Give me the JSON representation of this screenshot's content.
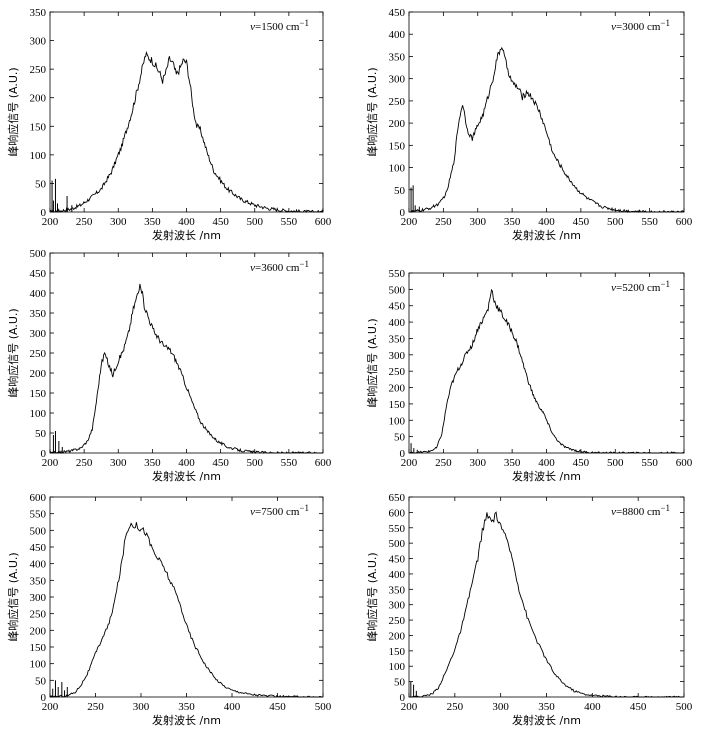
{
  "chart_data": [
    {
      "type": "line",
      "annotation_var": "v",
      "annotation_rest": "=1500 cm",
      "annotation_sup": "−1",
      "xlabel": "发射波长 /nm",
      "ylabel": "峰响应信号 (A.U.)",
      "xlim": [
        200,
        600
      ],
      "ylim": [
        0,
        350
      ],
      "xticks": [
        200,
        250,
        300,
        350,
        400,
        450,
        500,
        550,
        600
      ],
      "yticks": [
        0,
        50,
        100,
        150,
        200,
        250,
        300,
        350
      ],
      "spikes": [
        [
          203,
          55
        ],
        [
          205,
          20
        ],
        [
          208,
          58
        ],
        [
          211,
          15
        ],
        [
          225,
          28
        ],
        [
          232,
          12
        ]
      ],
      "x": [
        200,
        215,
        230,
        245,
        260,
        275,
        290,
        305,
        320,
        330,
        340,
        345,
        350,
        355,
        360,
        365,
        370,
        375,
        380,
        385,
        390,
        395,
        400,
        405,
        410,
        415,
        420,
        430,
        440,
        450,
        460,
        480,
        500,
        520,
        540,
        560,
        580,
        600
      ],
      "y": [
        0,
        2,
        5,
        12,
        25,
        40,
        70,
        115,
        175,
        225,
        275,
        270,
        265,
        255,
        245,
        230,
        245,
        268,
        260,
        240,
        250,
        265,
        262,
        225,
        180,
        150,
        145,
        105,
        72,
        55,
        40,
        22,
        12,
        6,
        3,
        1,
        0,
        0
      ]
    },
    {
      "type": "line",
      "annotation_var": "v",
      "annotation_rest": "=3000 cm",
      "annotation_sup": "−1",
      "xlabel": "发射波长 /nm",
      "ylabel": "峰响应信号 (A.U.)",
      "xlim": [
        200,
        600
      ],
      "ylim": [
        0,
        450
      ],
      "xticks": [
        200,
        250,
        300,
        350,
        400,
        450,
        500,
        550,
        600
      ],
      "yticks": [
        0,
        50,
        100,
        150,
        200,
        250,
        300,
        350,
        400,
        450
      ],
      "spikes": [
        [
          203,
          55
        ],
        [
          206,
          60
        ],
        [
          209,
          15
        ],
        [
          215,
          12
        ]
      ],
      "x": [
        200,
        215,
        230,
        245,
        255,
        265,
        272,
        278,
        285,
        292,
        300,
        308,
        315,
        322,
        328,
        335,
        340,
        345,
        350,
        355,
        360,
        365,
        372,
        380,
        390,
        400,
        410,
        420,
        430,
        445,
        460,
        480,
        500,
        520,
        550,
        580,
        600
      ],
      "y": [
        0,
        3,
        8,
        20,
        45,
        110,
        200,
        245,
        185,
        165,
        195,
        220,
        260,
        300,
        345,
        375,
        340,
        315,
        290,
        285,
        275,
        258,
        270,
        255,
        225,
        180,
        130,
        105,
        80,
        50,
        30,
        12,
        5,
        2,
        0,
        0,
        0
      ]
    },
    {
      "type": "line",
      "annotation_var": "v",
      "annotation_rest": "=3600 cm",
      "annotation_sup": "−1",
      "xlabel": "发射波长 /nm",
      "ylabel": "峰响应信号 (A.U.)",
      "xlim": [
        200,
        600
      ],
      "ylim": [
        0,
        500
      ],
      "xticks": [
        200,
        250,
        300,
        350,
        400,
        450,
        500,
        550,
        600
      ],
      "yticks": [
        0,
        50,
        100,
        150,
        200,
        250,
        300,
        350,
        400,
        450,
        500
      ],
      "spikes": [
        [
          205,
          45
        ],
        [
          208,
          55
        ],
        [
          213,
          30
        ],
        [
          218,
          15
        ]
      ],
      "x": [
        200,
        215,
        230,
        245,
        255,
        262,
        268,
        275,
        280,
        285,
        292,
        300,
        308,
        315,
        322,
        328,
        333,
        338,
        345,
        352,
        360,
        368,
        375,
        382,
        390,
        400,
        410,
        420,
        430,
        445,
        460,
        480,
        500,
        530,
        560,
        600
      ],
      "y": [
        0,
        2,
        5,
        12,
        30,
        60,
        130,
        220,
        250,
        225,
        195,
        230,
        260,
        300,
        360,
        395,
        420,
        370,
        335,
        305,
        285,
        265,
        260,
        240,
        210,
        165,
        120,
        80,
        55,
        30,
        15,
        6,
        2,
        0,
        0,
        0
      ]
    },
    {
      "type": "line",
      "annotation_var": "v",
      "annotation_rest": "=5200 cm",
      "annotation_sup": "−1",
      "xlabel": "发射波长 /nm",
      "ylabel": "峰响应信号 (A.U.)",
      "xlim": [
        200,
        600
      ],
      "ylim": [
        0,
        550
      ],
      "xticks": [
        200,
        250,
        300,
        350,
        400,
        450,
        500,
        550,
        600
      ],
      "yticks": [
        0,
        50,
        100,
        150,
        200,
        250,
        300,
        350,
        400,
        450,
        500,
        550
      ],
      "spikes": [
        [
          203,
          30
        ],
        [
          207,
          15
        ],
        [
          212,
          10
        ]
      ],
      "x": [
        200,
        215,
        230,
        240,
        248,
        255,
        262,
        270,
        278,
        285,
        292,
        300,
        308,
        315,
        320,
        325,
        330,
        335,
        342,
        350,
        358,
        365,
        372,
        380,
        388,
        395,
        402,
        410,
        420,
        430,
        445,
        460,
        480,
        500,
        530,
        560,
        600
      ],
      "y": [
        0,
        2,
        5,
        15,
        60,
        150,
        210,
        250,
        280,
        310,
        330,
        380,
        410,
        440,
        500,
        460,
        440,
        425,
        400,
        370,
        330,
        280,
        230,
        180,
        145,
        125,
        90,
        55,
        28,
        15,
        6,
        2,
        0,
        0,
        0,
        0,
        0
      ]
    },
    {
      "type": "line",
      "annotation_var": "v",
      "annotation_rest": "=7500 cm",
      "annotation_sup": "−1",
      "xlabel": "发射波长 /nm",
      "ylabel": "峰响应信号 (A.U.)",
      "xlim": [
        200,
        500
      ],
      "ylim": [
        0,
        600
      ],
      "xticks": [
        200,
        250,
        300,
        350,
        400,
        450,
        500
      ],
      "yticks": [
        0,
        50,
        100,
        150,
        200,
        250,
        300,
        350,
        400,
        450,
        500,
        550,
        600
      ],
      "spikes": [
        [
          203,
          25
        ],
        [
          206,
          50
        ],
        [
          209,
          30
        ],
        [
          213,
          45
        ],
        [
          216,
          20
        ],
        [
          219,
          30
        ]
      ],
      "x": [
        200,
        210,
        220,
        228,
        235,
        242,
        250,
        258,
        265,
        272,
        278,
        283,
        288,
        295,
        300,
        305,
        310,
        315,
        320,
        325,
        330,
        335,
        340,
        345,
        350,
        355,
        360,
        370,
        380,
        390,
        400,
        420,
        440,
        460,
        480,
        500
      ],
      "y": [
        0,
        2,
        5,
        15,
        40,
        75,
        130,
        180,
        220,
        300,
        390,
        480,
        520,
        515,
        505,
        495,
        460,
        430,
        410,
        390,
        360,
        330,
        300,
        260,
        215,
        180,
        150,
        100,
        60,
        35,
        20,
        8,
        3,
        1,
        0,
        0
      ]
    },
    {
      "type": "line",
      "annotation_var": "v",
      "annotation_rest": "=8800 cm",
      "annotation_sup": "−1",
      "xlabel": "发射波长 /nm",
      "ylabel": "峰响应信号 (A.U.)",
      "xlim": [
        200,
        500
      ],
      "ylim": [
        0,
        650
      ],
      "xticks": [
        200,
        250,
        300,
        350,
        400,
        450,
        500
      ],
      "yticks": [
        0,
        50,
        100,
        150,
        200,
        250,
        300,
        350,
        400,
        450,
        500,
        550,
        600,
        650
      ],
      "spikes": [
        [
          202,
          50
        ],
        [
          205,
          40
        ],
        [
          208,
          20
        ]
      ],
      "x": [
        200,
        215,
        225,
        232,
        240,
        248,
        255,
        262,
        268,
        275,
        280,
        285,
        290,
        295,
        300,
        305,
        310,
        315,
        320,
        325,
        330,
        340,
        350,
        360,
        370,
        380,
        390,
        400,
        420,
        440,
        460,
        480,
        500
      ],
      "y": [
        0,
        2,
        10,
        30,
        80,
        140,
        200,
        280,
        360,
        450,
        540,
        590,
        570,
        590,
        560,
        520,
        480,
        420,
        350,
        300,
        250,
        180,
        120,
        70,
        40,
        20,
        10,
        5,
        2,
        0,
        0,
        0,
        0
      ]
    }
  ]
}
